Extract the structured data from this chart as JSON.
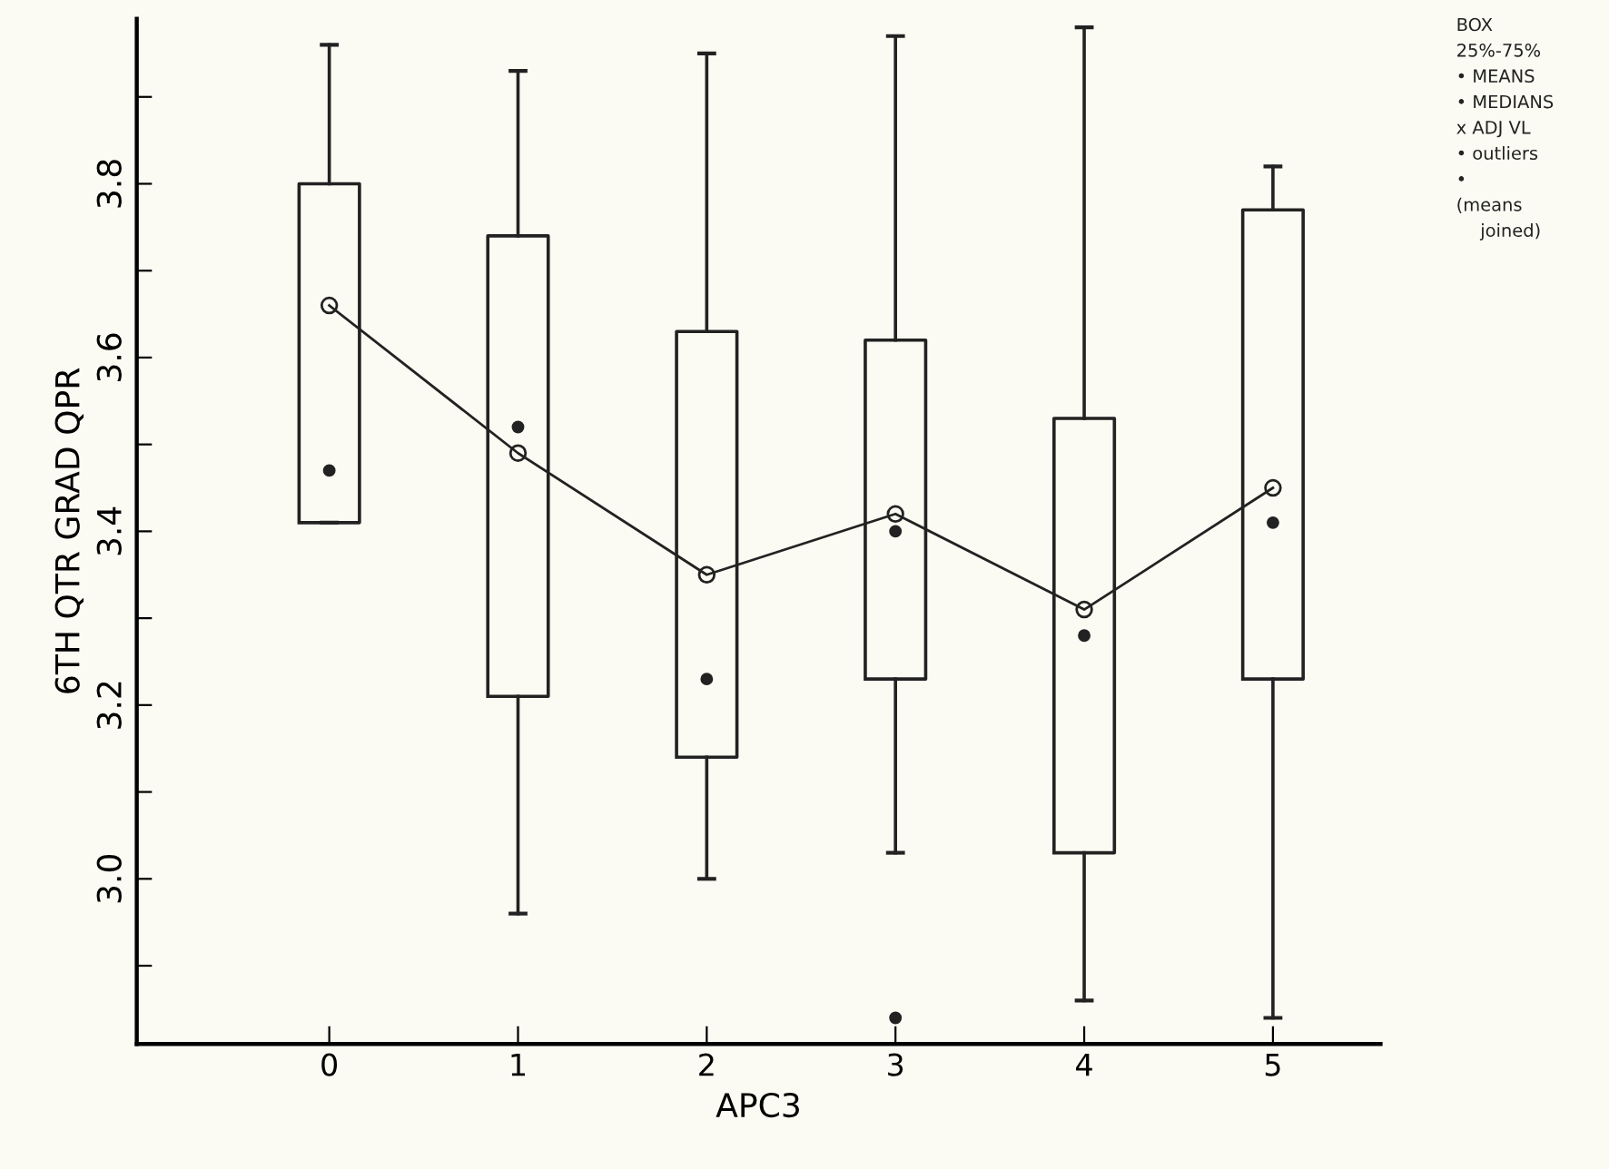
{
  "chart_data": {
    "type": "box",
    "xlabel": "APC3",
    "ylabel": "6TH QTR GRAD QPR",
    "categories": [
      "0",
      "1",
      "2",
      "3",
      "4",
      "5"
    ],
    "boxes": [
      {
        "low": 3.41,
        "q1": 3.41,
        "median": 3.47,
        "q3": 3.8,
        "high": 3.96,
        "mean": 3.66
      },
      {
        "low": 2.96,
        "q1": 3.21,
        "median": 3.52,
        "q3": 3.74,
        "high": 3.93,
        "mean": 3.49
      },
      {
        "low": 3.0,
        "q1": 3.14,
        "median": 3.23,
        "q3": 3.63,
        "high": 3.95,
        "mean": 3.35
      },
      {
        "low": 3.03,
        "q1": 3.23,
        "median": 3.4,
        "q3": 3.62,
        "high": 3.97,
        "mean": 3.42,
        "outliers": [
          2.84
        ]
      },
      {
        "low": 2.86,
        "q1": 3.03,
        "median": 3.28,
        "q3": 3.53,
        "high": 3.98,
        "mean": 3.31
      },
      {
        "low": 2.84,
        "q1": 3.23,
        "median": 3.41,
        "q3": 3.77,
        "high": 3.82,
        "mean": 3.45
      }
    ],
    "series": [
      {
        "type": "line",
        "color": "#222222",
        "x": [
          "0",
          "1",
          "2",
          "3",
          "4",
          "5"
        ],
        "values": [
          3.66,
          3.49,
          3.35,
          3.42,
          3.31,
          3.45
        ]
      }
    ],
    "ylim": [
      2.81,
      3.99
    ],
    "yticks": [
      {
        "value": 2.9,
        "label": null
      },
      {
        "value": 3.0,
        "label": "3.0"
      },
      {
        "value": 3.1,
        "label": null
      },
      {
        "value": 3.2,
        "label": "3.2"
      },
      {
        "value": 3.3,
        "label": null
      },
      {
        "value": 3.4,
        "label": "3.4"
      },
      {
        "value": 3.5,
        "label": null
      },
      {
        "value": 3.6,
        "label": "3.6"
      },
      {
        "value": 3.7,
        "label": null
      },
      {
        "value": 3.8,
        "label": "3.8"
      },
      {
        "value": 3.9,
        "label": null
      }
    ],
    "grid": false,
    "annotations": [
      "BOX",
      "25%-75%",
      "• MEANS",
      "• MEDIANS",
      "x ADJ VL",
      "• outliers",
      "•",
      "(means",
      "joined)"
    ]
  }
}
